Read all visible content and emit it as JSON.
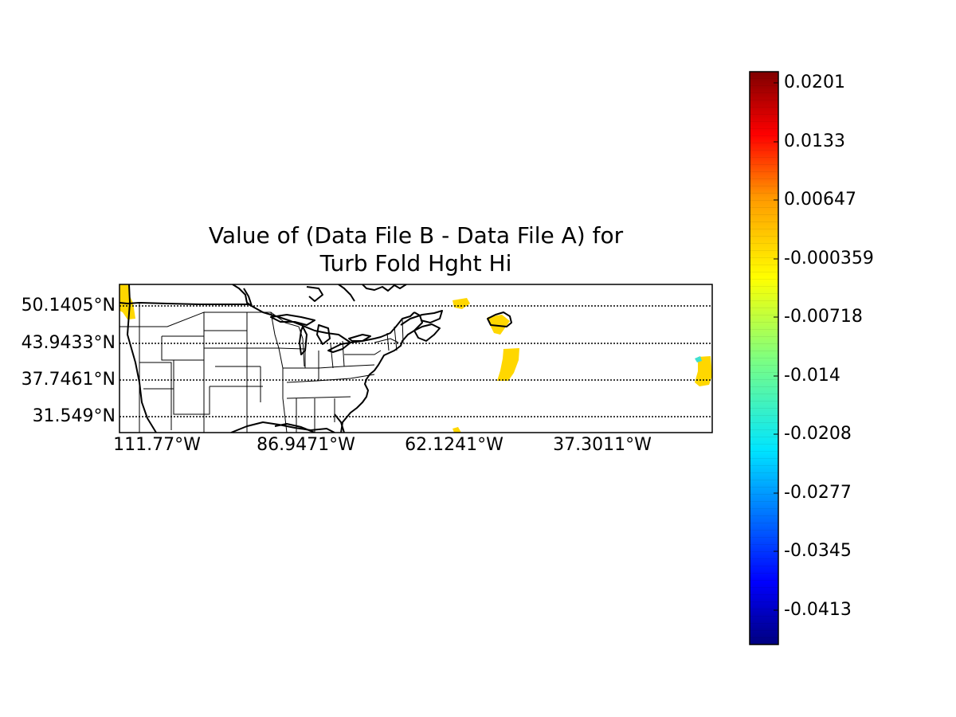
{
  "title": {
    "line1": "Value of (Data File B - Data File A) for",
    "line2": "Turb Fold Hght Hi"
  },
  "map": {
    "latitude_labels": [
      "50.1405°N",
      "43.9433°N",
      "37.7461°N",
      "31.549°N"
    ],
    "longitude_labels": [
      "111.77°W",
      "86.9471°W",
      "62.1241°W",
      "37.3011°W"
    ],
    "parallels_style": "dotted",
    "features": [
      "coastlines",
      "country borders",
      "US state borders",
      "parallels"
    ],
    "field_colors": {
      "positive_small": "#ffd700",
      "negative_small": "#40e0d0"
    }
  },
  "colorbar": {
    "tick_labels": [
      "0.0201",
      "0.0133",
      "0.00647",
      "-0.000359",
      "-0.00718",
      "-0.014",
      "-0.0208",
      "-0.0277",
      "-0.0345",
      "-0.0413"
    ],
    "colormap": "jet"
  }
}
